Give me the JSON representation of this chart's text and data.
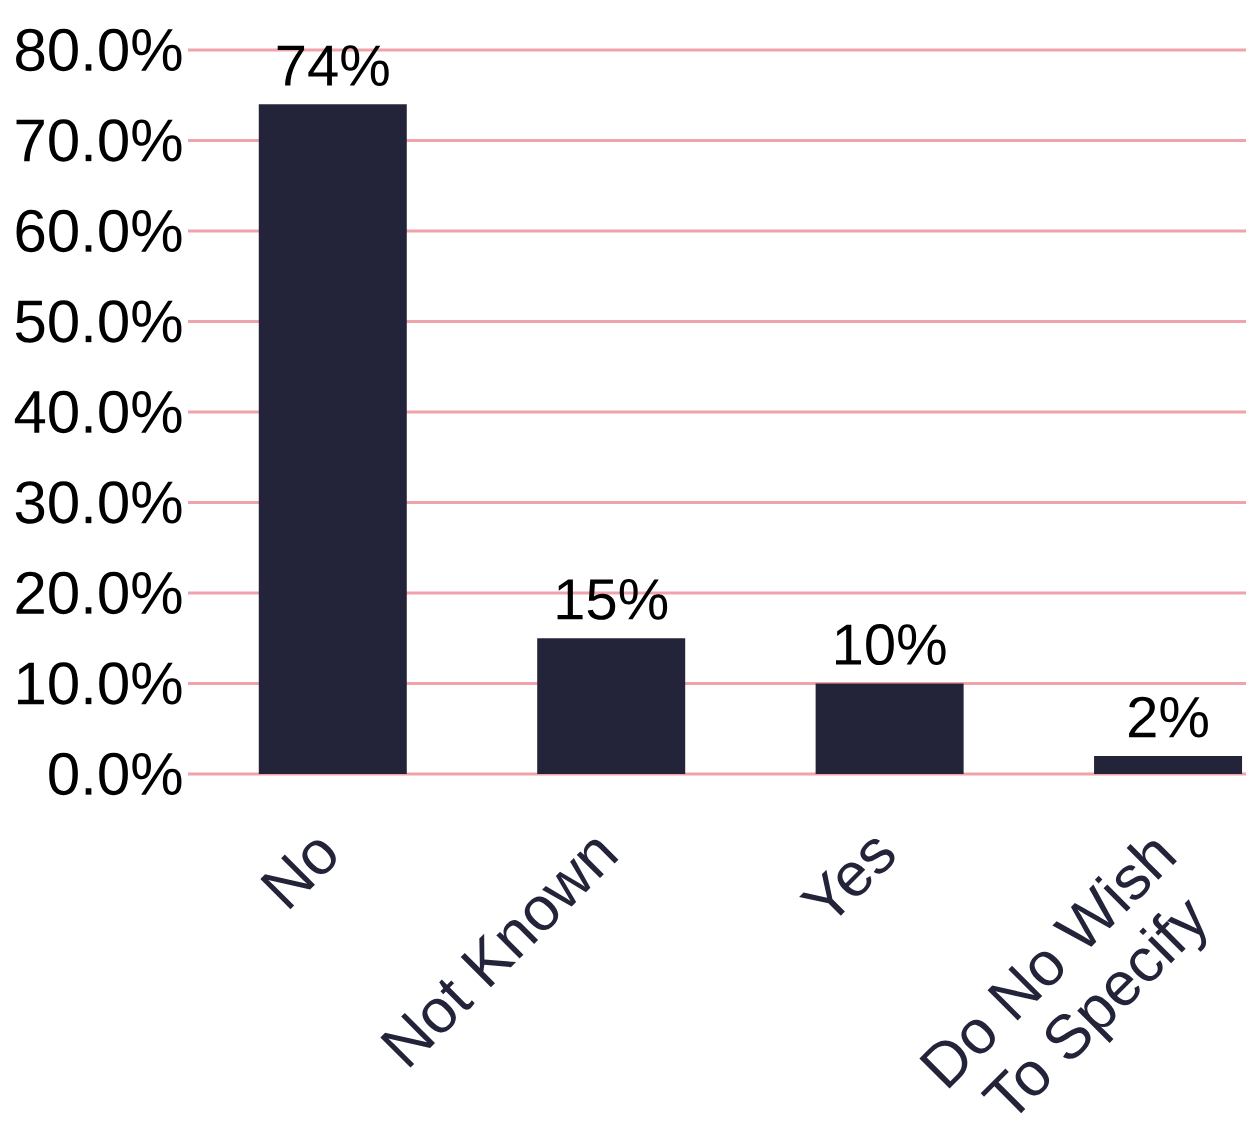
{
  "chart_data": {
    "type": "bar",
    "categories": [
      "No",
      "Not Known",
      "Yes",
      "Do No Wish To Specify"
    ],
    "values": [
      74,
      15,
      10,
      2
    ],
    "value_labels": [
      "74%",
      "15%",
      "10%",
      "2%"
    ],
    "color": "#23243a",
    "ylim": [
      0,
      80
    ],
    "yticks": [
      {
        "value": 0,
        "label": "0.0%"
      },
      {
        "value": 10,
        "label": "10.0%"
      },
      {
        "value": 20,
        "label": "20.0%"
      },
      {
        "value": 30,
        "label": "30.0%"
      },
      {
        "value": 40,
        "label": "40.0%"
      },
      {
        "value": 50,
        "label": "50.0%"
      },
      {
        "value": 60,
        "label": "60.0%"
      },
      {
        "value": 70,
        "label": "70.0%"
      },
      {
        "value": 80,
        "label": "80.0%"
      }
    ],
    "grid": "y"
  }
}
